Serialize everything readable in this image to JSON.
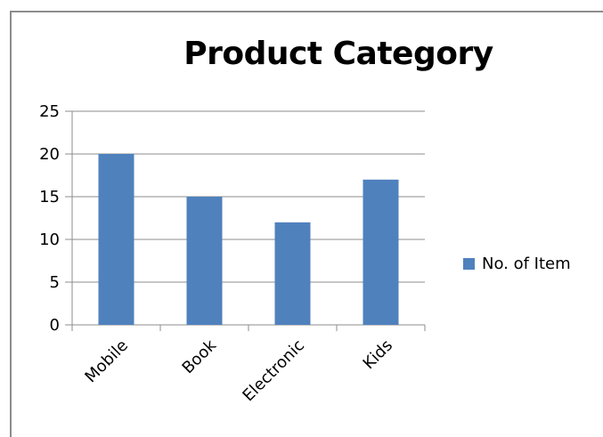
{
  "chart_data": {
    "type": "bar",
    "title": "Product Category",
    "categories": [
      "Mobile",
      "Book",
      "Electronic",
      "Kids"
    ],
    "series": [
      {
        "name": "No. of Item",
        "values": [
          20,
          15,
          12,
          17
        ],
        "color": "#4f81bd"
      }
    ],
    "ylim": [
      0,
      25
    ],
    "yticks": [
      0,
      5,
      10,
      15,
      20,
      25
    ],
    "grid": true,
    "legend_position": "right"
  }
}
